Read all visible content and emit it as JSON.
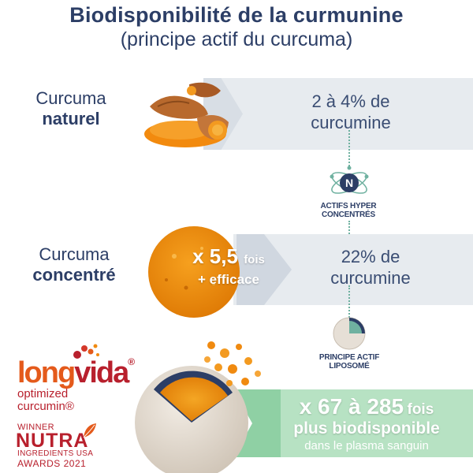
{
  "header": {
    "title": "Biodisponibilité de la curmunine",
    "subtitle": "(principe actif du curcuma)"
  },
  "rows": [
    {
      "label_line1": "Curcuma",
      "label_line2": "naturel",
      "content_line1": "2 à 4% de",
      "content_line2": "curcumine"
    },
    {
      "label_line1": "Curcuma",
      "label_line2": "concentré",
      "multiplier": "x 5,5",
      "multiplier_suffix": "fois",
      "multiplier_line2": "+ efficace",
      "content_line1": "22% de",
      "content_line2": "curcumine"
    },
    {
      "multiplier": "x 67 à 285",
      "multiplier_suffix": "fois",
      "line2": "plus biodisponible",
      "line3": "dans le plasma sanguin"
    }
  ],
  "badges": {
    "actifs_line1": "ACTIFS HYPER",
    "actifs_line2": "CONCENTRÉS",
    "principe_line1": "PRINCIPE ACTIF",
    "principe_line2": "LIPOSOMÉ"
  },
  "logo": {
    "brand_part1": "long",
    "brand_part2": "vida",
    "brand_mark": "®",
    "tagline1": "optimized",
    "tagline2": "curcumin®",
    "award_winner": "WINNER",
    "award_nutra": "NUTRA",
    "award_ingredients": "INGREDIENTS USA",
    "award_year": "AWARDS 2021"
  },
  "colors": {
    "navy": "#2c3e66",
    "bar_gray": "#e7ebef",
    "green": "#b7e2c3",
    "turmeric": "#f08a10",
    "brand_red": "#b8202d"
  }
}
